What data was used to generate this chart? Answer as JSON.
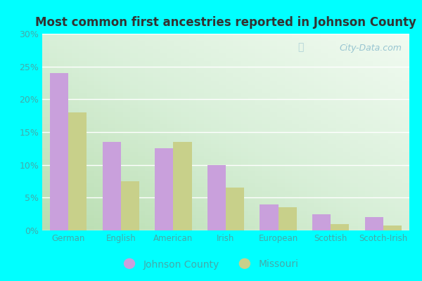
{
  "title": "Most common first ancestries reported in Johnson County",
  "categories": [
    "German",
    "English",
    "American",
    "Irish",
    "European",
    "Scottish",
    "Scotch-Irish"
  ],
  "johnson_county": [
    24,
    13.5,
    12.5,
    10,
    4,
    2.5,
    2
  ],
  "missouri": [
    18,
    7.5,
    13.5,
    6.5,
    3.5,
    1,
    0.7
  ],
  "johnson_color": "#c9a0dc",
  "missouri_color": "#c8d08a",
  "ylim": [
    0,
    30
  ],
  "yticks": [
    0,
    5,
    10,
    15,
    20,
    25,
    30
  ],
  "ytick_labels": [
    "0%",
    "5%",
    "10%",
    "15%",
    "20%",
    "25%",
    "30%"
  ],
  "plot_bg_top_right": "#e8f5f0",
  "plot_bg_bottom_left": "#c8e8c0",
  "outer_background": "#00ffff",
  "legend_johnson": "Johnson County",
  "legend_missouri": "Missouri",
  "bar_width": 0.35,
  "watermark": "City-Data.com",
  "grid_color": "#d0e8d0",
  "tick_label_color": "#44aaaa",
  "title_color": "#333333"
}
